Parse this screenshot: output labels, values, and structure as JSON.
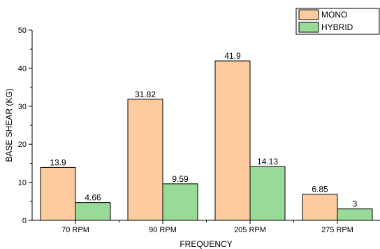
{
  "chart_data": {
    "type": "bar",
    "categories": [
      "70 RPM",
      "90 RPM",
      "205 RPM",
      "275 RPM"
    ],
    "series": [
      {
        "name": "MONO",
        "values": [
          13.9,
          31.82,
          41.9,
          6.85
        ],
        "labels": [
          "13.9",
          "31.82",
          "41.9",
          "6.85"
        ],
        "color": "#FDCB9E"
      },
      {
        "name": "HYBRID",
        "values": [
          4.66,
          9.59,
          14.13,
          3
        ],
        "labels": [
          "4.66",
          "9.59",
          "14.13",
          "3"
        ],
        "color": "#98DA98"
      }
    ],
    "xlabel": "FREQUENCY",
    "ylabel": "BASE SHEAR (KG)",
    "ylim": [
      0,
      50
    ],
    "yticks": [
      "0",
      "10",
      "20",
      "30",
      "40",
      "50"
    ],
    "grid": false,
    "legend_position": "top-right"
  }
}
